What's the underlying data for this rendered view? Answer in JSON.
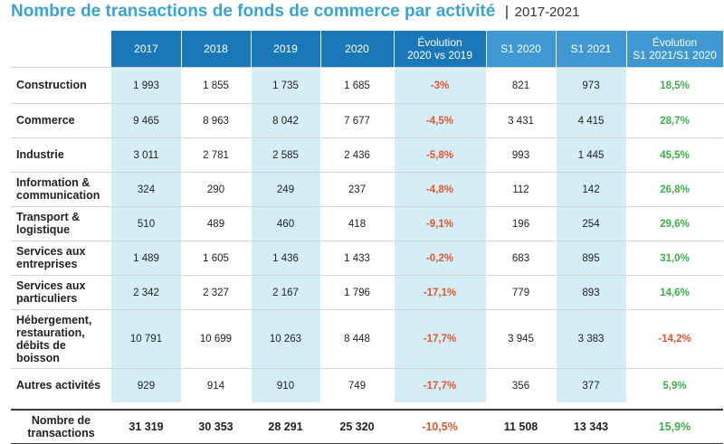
{
  "title": {
    "main": "Nombre de transactions de fonds de commerce par activité",
    "separator": "|",
    "years": "2017-2021"
  },
  "colors": {
    "header_dark": "#1b78b8",
    "header_light": "#3f98d2",
    "shade": "#d5edf5",
    "negative": "#e0572f",
    "positive": "#3fae49"
  },
  "chart_data": {
    "type": "table",
    "columns": [
      "2017",
      "2018",
      "2019",
      "2020",
      "Évolution\n2020 vs 2019",
      "S1 2020",
      "S1 2021",
      "Évolution\nS1 2021/S1 2020"
    ],
    "rows": [
      {
        "label": "Construction",
        "values": [
          "1 993",
          "1 855",
          "1 735",
          "1 685",
          "-3%",
          "821",
          "973",
          "18,5%"
        ]
      },
      {
        "label": "Commerce",
        "values": [
          "9 465",
          "8 963",
          "8 042",
          "7 677",
          "-4,5%",
          "3 431",
          "4 415",
          "28,7%"
        ]
      },
      {
        "label": "Industrie",
        "values": [
          "3 011",
          "2 781",
          "2 585",
          "2 436",
          "-5,8%",
          "993",
          "1 445",
          "45,5%"
        ]
      },
      {
        "label": "Information &\ncommunication",
        "values": [
          "324",
          "290",
          "249",
          "237",
          "-4,8%",
          "112",
          "142",
          "26,8%"
        ]
      },
      {
        "label": "Transport &\nlogistique",
        "values": [
          "510",
          "489",
          "460",
          "418",
          "-9,1%",
          "196",
          "254",
          "29,6%"
        ]
      },
      {
        "label": "Services aux\nentreprises",
        "values": [
          "1 489",
          "1 605",
          "1 436",
          "1 433",
          "-0,2%",
          "683",
          "895",
          "31,0%"
        ]
      },
      {
        "label": "Services aux\nparticuliers",
        "values": [
          "2 342",
          "2 327",
          "2 167",
          "1 796",
          "-17,1%",
          "779",
          "893",
          "14,6%"
        ]
      },
      {
        "label": "Hébergement,\nrestauration,\ndébits de\nboisson",
        "values": [
          "10 791",
          "10 699",
          "10 263",
          "8 448",
          "-17,7%",
          "3 945",
          "3 383",
          "-14,2%"
        ]
      },
      {
        "label": "Autres activités",
        "values": [
          "929",
          "914",
          "910",
          "749",
          "-17,7%",
          "356",
          "377",
          "5,9%"
        ]
      }
    ],
    "total": {
      "label": "Nombre de\ntransactions",
      "values": [
        "31 319",
        "30 353",
        "28 291",
        "25 320",
        "-10,5%",
        "11 508",
        "13 343",
        "15,9%"
      ]
    }
  }
}
